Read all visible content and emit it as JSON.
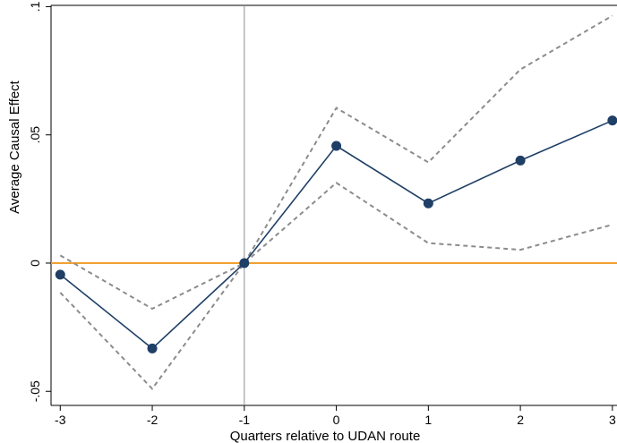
{
  "chart_data": {
    "type": "line",
    "xlabel": "Quarters relative to UDAN route",
    "ylabel": "Average Causal Effect",
    "x": [
      -3,
      -2,
      -1,
      0,
      1,
      2,
      3
    ],
    "xticks": [
      "-3",
      "-2",
      "-1",
      "0",
      "1",
      "2",
      "3"
    ],
    "yticks": [
      {
        "value": -0.05,
        "label": "-.05"
      },
      {
        "value": 0,
        "label": "0"
      },
      {
        "value": 0.05,
        "label": ".05"
      },
      {
        "value": 0.1,
        "label": ".1"
      }
    ],
    "xlim": [
      -3.1,
      3.05
    ],
    "ylim": [
      -0.0555,
      0.1005
    ],
    "series": [
      {
        "values": [
          -0.0045,
          -0.0333,
          0.0,
          0.0457,
          0.0233,
          0.04,
          0.0556
        ],
        "style": "solid-markers",
        "color": "#1f3f66"
      },
      {
        "values": [
          0.003,
          -0.0178,
          0.0,
          0.0605,
          0.0393,
          0.0755,
          0.0965
        ],
        "style": "dashed",
        "color": "#8c8c8c"
      },
      {
        "values": [
          -0.0115,
          -0.049,
          0.0,
          0.0313,
          0.0078,
          0.0052,
          0.015
        ],
        "style": "dashed",
        "color": "#8c8c8c"
      }
    ],
    "reference_lines": {
      "horizontal_y": 0,
      "horizontal_color": "#f0a030",
      "vertical_x": -1,
      "vertical_color": "#8f8f8f"
    },
    "grid": false
  }
}
